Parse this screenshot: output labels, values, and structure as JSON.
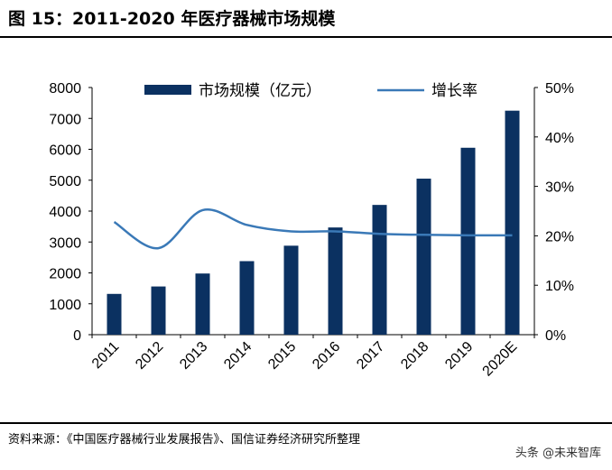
{
  "header": {
    "title": "图 15：2011-2020 年医疗器械市场规模"
  },
  "footer": {
    "source": "资料来源：《中国医疗器械行业发展报告》、国信证券经济研究所整理",
    "watermark": "头条 @未来智库"
  },
  "colors": {
    "bar": "#0b3161",
    "line": "#3a79b7",
    "axis": "#000000"
  },
  "chart_data": {
    "type": "bar",
    "title": "",
    "categories": [
      "2011",
      "2012",
      "2013",
      "2014",
      "2015",
      "2016",
      "2017",
      "2018",
      "2019",
      "2020E"
    ],
    "series": [
      {
        "name": "市场规模（亿元）",
        "type": "bar",
        "axis": "left",
        "values": [
          1320,
          1560,
          1980,
          2380,
          2880,
          3470,
          4200,
          5050,
          6050,
          7250
        ]
      },
      {
        "name": "增长率",
        "type": "line",
        "axis": "right",
        "values": [
          0.228,
          0.175,
          0.252,
          0.222,
          0.209,
          0.209,
          0.204,
          0.202,
          0.201,
          0.201
        ]
      }
    ],
    "y_left": {
      "min": 0,
      "max": 8000,
      "ticks": [
        "0",
        "1000",
        "2000",
        "3000",
        "4000",
        "5000",
        "6000",
        "7000",
        "8000"
      ]
    },
    "y_right": {
      "min": 0,
      "max": 0.5,
      "ticks": [
        "0%",
        "10%",
        "20%",
        "30%",
        "40%",
        "50%"
      ]
    },
    "xlabel": "",
    "ylabel": "",
    "grid": false,
    "legend": "top"
  }
}
